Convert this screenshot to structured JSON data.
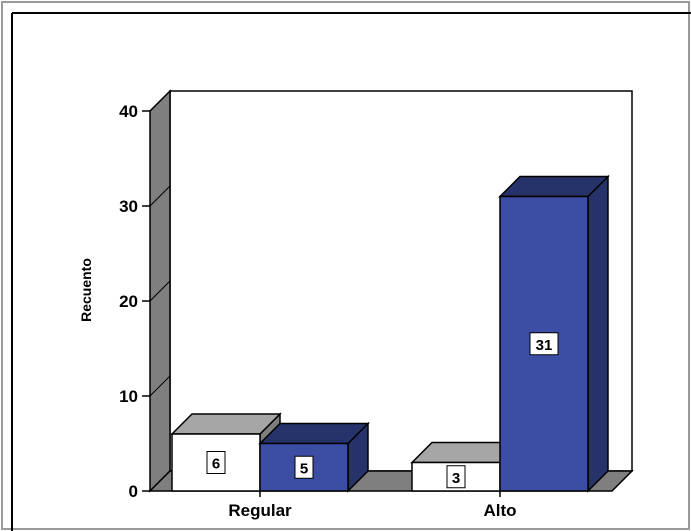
{
  "chart_data": {
    "type": "bar",
    "style": "3d-clustered",
    "categories": [
      "Regular",
      "Alto"
    ],
    "series": [
      {
        "values": [
          6,
          3
        ],
        "color": "#ffffff"
      },
      {
        "values": [
          5,
          31
        ],
        "color": "#3b4ea3"
      }
    ],
    "data_labels": [
      [
        "6",
        "3"
      ],
      [
        "5",
        "31"
      ]
    ],
    "title": "",
    "xlabel": "",
    "ylabel": "Recuento",
    "ylim": [
      0,
      40
    ],
    "yticks": [
      "0",
      "10",
      "20",
      "30",
      "40"
    ],
    "grid": false,
    "legend": "none",
    "colors": {
      "wall": "#ffffff",
      "side_wall": "#7f7f7f",
      "floor": "#7f7f7f",
      "series0_front": "#ffffff",
      "series0_top": "#a6a6a6",
      "series0_side": "#7f7f7f",
      "series1_front": "#3b4ea3",
      "series1_top": "#26336b",
      "series1_side": "#26336b"
    }
  }
}
